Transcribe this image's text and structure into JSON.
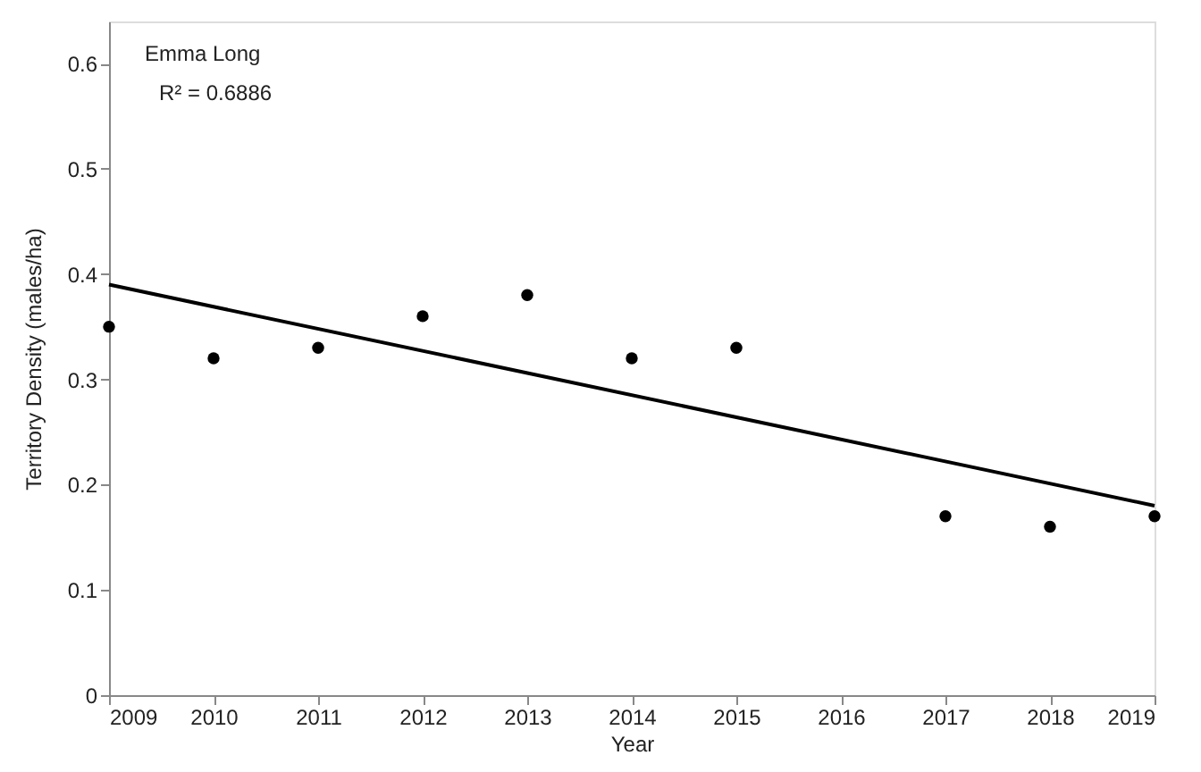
{
  "chart_data": {
    "type": "scatter",
    "xlabel": "Year",
    "ylabel": "Territory Density (males/ha)",
    "annotations": [
      "Emma Long",
      "R² = 0.6886"
    ],
    "x": [
      2009,
      2010,
      2011,
      2012,
      2013,
      2014,
      2015,
      2017,
      2018,
      2019
    ],
    "series": [
      {
        "color": "#000000",
        "marker": "circle",
        "values": [
          0.35,
          0.32,
          0.33,
          0.36,
          0.38,
          0.32,
          0.33,
          0.17,
          0.16,
          0.17
        ]
      },
      {
        "type": "line",
        "color": "#000000",
        "line_style": "solid",
        "marker": "none",
        "x": [
          2009,
          2019
        ],
        "values": [
          0.39,
          0.18
        ]
      }
    ],
    "xlim": [
      2009,
      2019
    ],
    "xticks": [
      2009,
      2010,
      2011,
      2012,
      2013,
      2014,
      2015,
      2016,
      2017,
      2018,
      2019
    ],
    "ylim": [
      0,
      0.64
    ],
    "yticks": [
      0,
      0.1,
      0.2,
      0.3,
      0.4,
      0.5,
      0.6
    ],
    "grid": false
  }
}
